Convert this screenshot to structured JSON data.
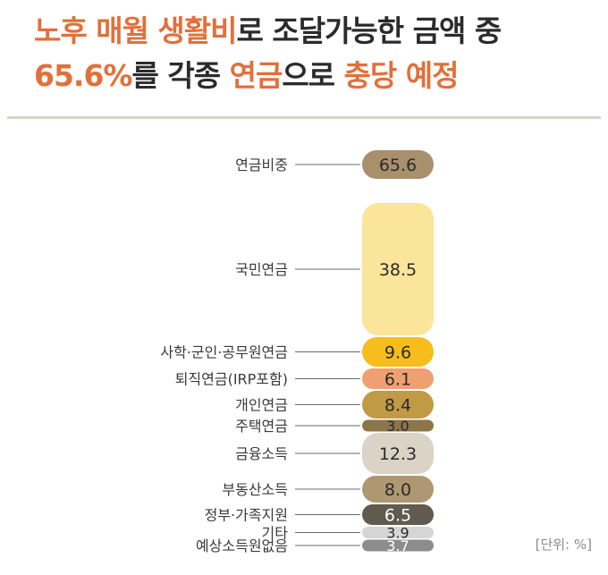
{
  "title": {
    "line1_a": "노후 매월 생활비",
    "line1_b": "로 조달가능한 금액 중",
    "line2_a": "65.6%",
    "line2_b": "를 각종",
    "line2_c": "연금",
    "line2_d": "으로",
    "line2_e": "충당 예정"
  },
  "unit_label": "[단위: %]",
  "colors": {
    "accent": "#e2703a"
  },
  "chart_data": {
    "type": "bar",
    "orientation": "stacked-column",
    "categories": [
      "연금비중",
      "국민연금",
      "사학·군인·공무원연금",
      "퇴직연금(IRP포함)",
      "개인연금",
      "주택연금",
      "금융소득",
      "부동산소득",
      "정부·가족지원",
      "기타",
      "예상소득원없음"
    ],
    "values": [
      65.6,
      38.5,
      9.6,
      6.1,
      8.4,
      3.0,
      12.3,
      8.0,
      6.5,
      3.9,
      3.7
    ],
    "labels": [
      "65.6",
      "38.5",
      "9.6",
      "6.1",
      "8.4",
      "3.0",
      "12.3",
      "8.0",
      "6.5",
      "3.9",
      "3.7"
    ],
    "colors": [
      "#a8906d",
      "#fbe59a",
      "#f6bd1c",
      "#f0a070",
      "#c09a45",
      "#8c7548",
      "#dcd3c7",
      "#ad9873",
      "#625a4e",
      "#d5d5d5",
      "#8c8c8c"
    ]
  }
}
